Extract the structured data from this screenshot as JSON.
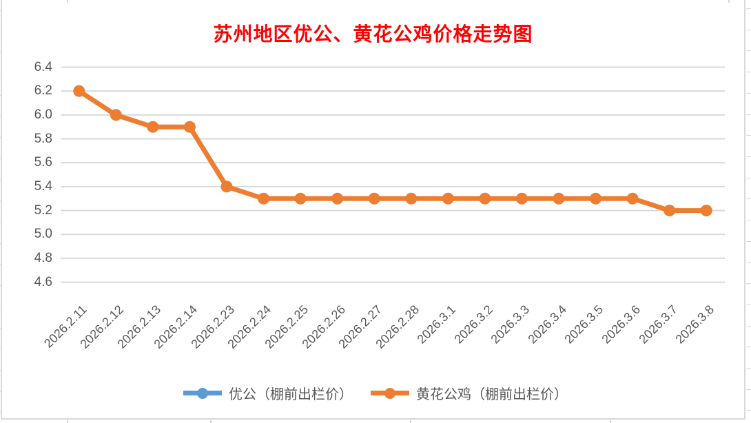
{
  "chart": {
    "title": "苏州地区优公、黄花公鸡价格走势图"
  },
  "chart_data": {
    "type": "line",
    "title": "苏州地区优公、黄花公鸡价格走势图",
    "title_color": "#FF0000",
    "axis_text_color": "#595959",
    "gridline_color": "#D9D9D9",
    "grid": true,
    "legend_position": "bottom",
    "categories": [
      "2026.2.11",
      "2026.2.12",
      "2026.2.13",
      "2026.2.14",
      "2026.2.23",
      "2026.2.24",
      "2026.2.25",
      "2026.2.26",
      "2026.2.27",
      "2026.2.28",
      "2026.3.1",
      "2026.3.2",
      "2026.3.3",
      "2026.3.4",
      "2026.3.5",
      "2026.3.6",
      "2026.3.7",
      "2026.3.8"
    ],
    "series": [
      {
        "name": "优公（棚前出栏价）",
        "color": "#5B9BD5",
        "values": null,
        "visible_in_plot": false
      },
      {
        "name": "黄花公鸡（棚前出栏价）",
        "color": "#ED7D31",
        "values": [
          6.2,
          6.0,
          5.9,
          5.9,
          5.4,
          5.3,
          5.3,
          5.3,
          5.3,
          5.3,
          5.3,
          5.3,
          5.3,
          5.3,
          5.3,
          5.3,
          5.2,
          5.2
        ],
        "visible_in_plot": true
      }
    ],
    "ylim": [
      4.6,
      6.4
    ],
    "y_tick_step": 0.2,
    "y_ticks": [
      "6.4",
      "6.2",
      "6.0",
      "5.8",
      "5.6",
      "5.4",
      "5.2",
      "5.0",
      "4.8",
      "4.6"
    ]
  }
}
